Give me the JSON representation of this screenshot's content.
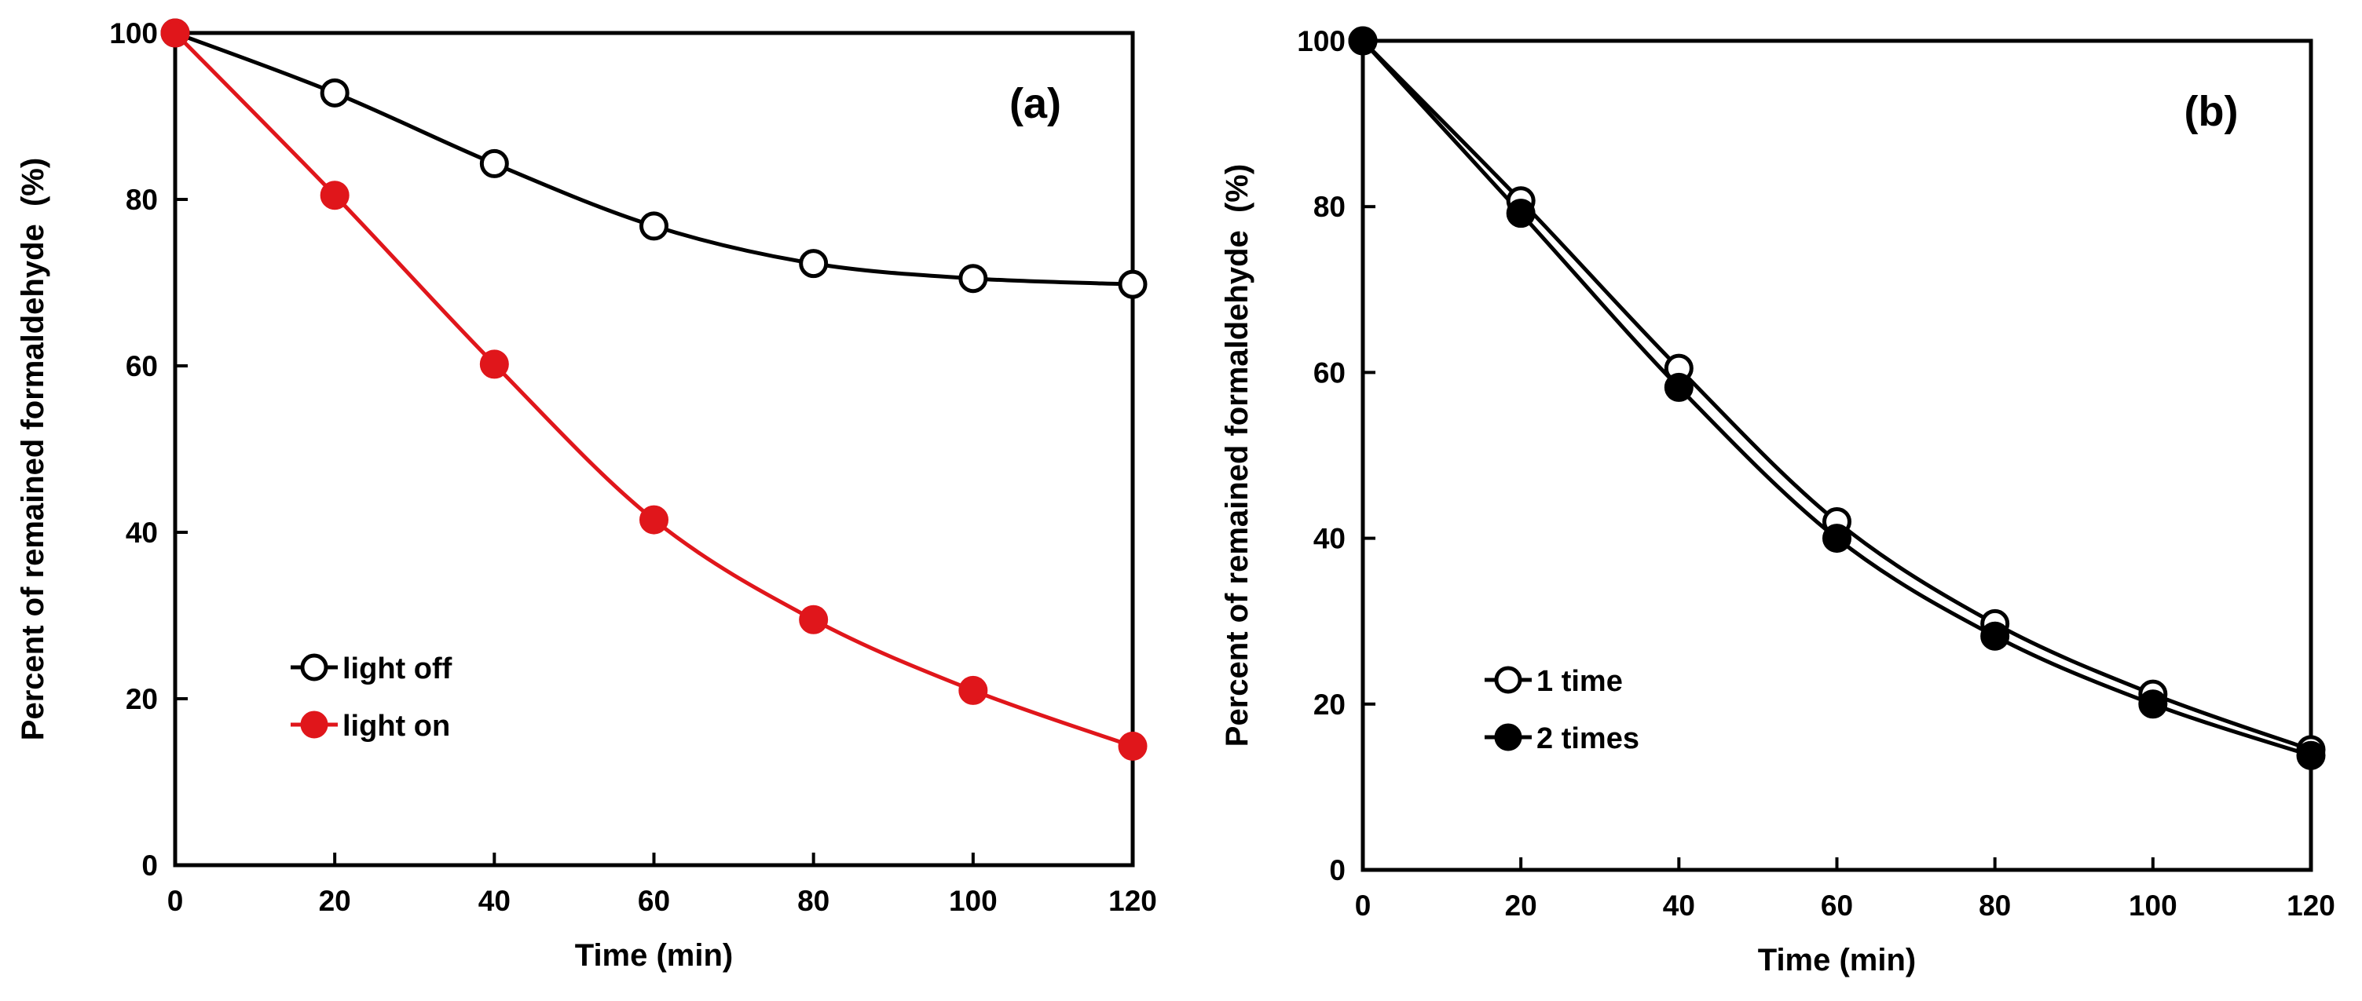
{
  "chart_data": [
    {
      "type": "line",
      "panel_label": "(a)",
      "xlabel": "Time (min)",
      "ylabel": "Percent of remained formaldehyde  (%)",
      "xlim": [
        0,
        120
      ],
      "ylim": [
        0,
        100
      ],
      "xticks": [
        "0",
        "20",
        "40",
        "60",
        "80",
        "100",
        "120"
      ],
      "yticks": [
        "0",
        "20",
        "40",
        "60",
        "80",
        "100"
      ],
      "x": [
        0,
        20,
        40,
        60,
        80,
        100,
        120
      ],
      "legend_position": "left-lower",
      "series": [
        {
          "name": "light off",
          "values": [
            100,
            92.8,
            84.3,
            76.8,
            72.3,
            70.5,
            69.8
          ],
          "color": "#000000",
          "marker": "open-circle"
        },
        {
          "name": "light on",
          "values": [
            100,
            80.5,
            60.2,
            41.5,
            29.5,
            21.0,
            14.3
          ],
          "color": "#e0161b",
          "marker": "filled-circle"
        }
      ]
    },
    {
      "type": "line",
      "panel_label": "(b)",
      "xlabel": "Time (min)",
      "ylabel": "Percent of remained formaldehyde  (%)",
      "xlim": [
        0,
        120
      ],
      "ylim": [
        0,
        100
      ],
      "xticks": [
        "0",
        "20",
        "40",
        "60",
        "80",
        "100",
        "120"
      ],
      "yticks": [
        "0",
        "20",
        "40",
        "60",
        "80",
        "100"
      ],
      "x": [
        0,
        20,
        40,
        60,
        80,
        100,
        120
      ],
      "legend_position": "left-lower",
      "series": [
        {
          "name": "1 time",
          "values": [
            100,
            80.7,
            60.5,
            42.0,
            29.7,
            21.2,
            14.5
          ],
          "color": "#000000",
          "marker": "open-circle"
        },
        {
          "name": "2 times",
          "values": [
            100,
            79.2,
            58.2,
            40.0,
            28.2,
            20.0,
            13.8
          ],
          "color": "#000000",
          "marker": "filled-circle"
        }
      ]
    }
  ]
}
